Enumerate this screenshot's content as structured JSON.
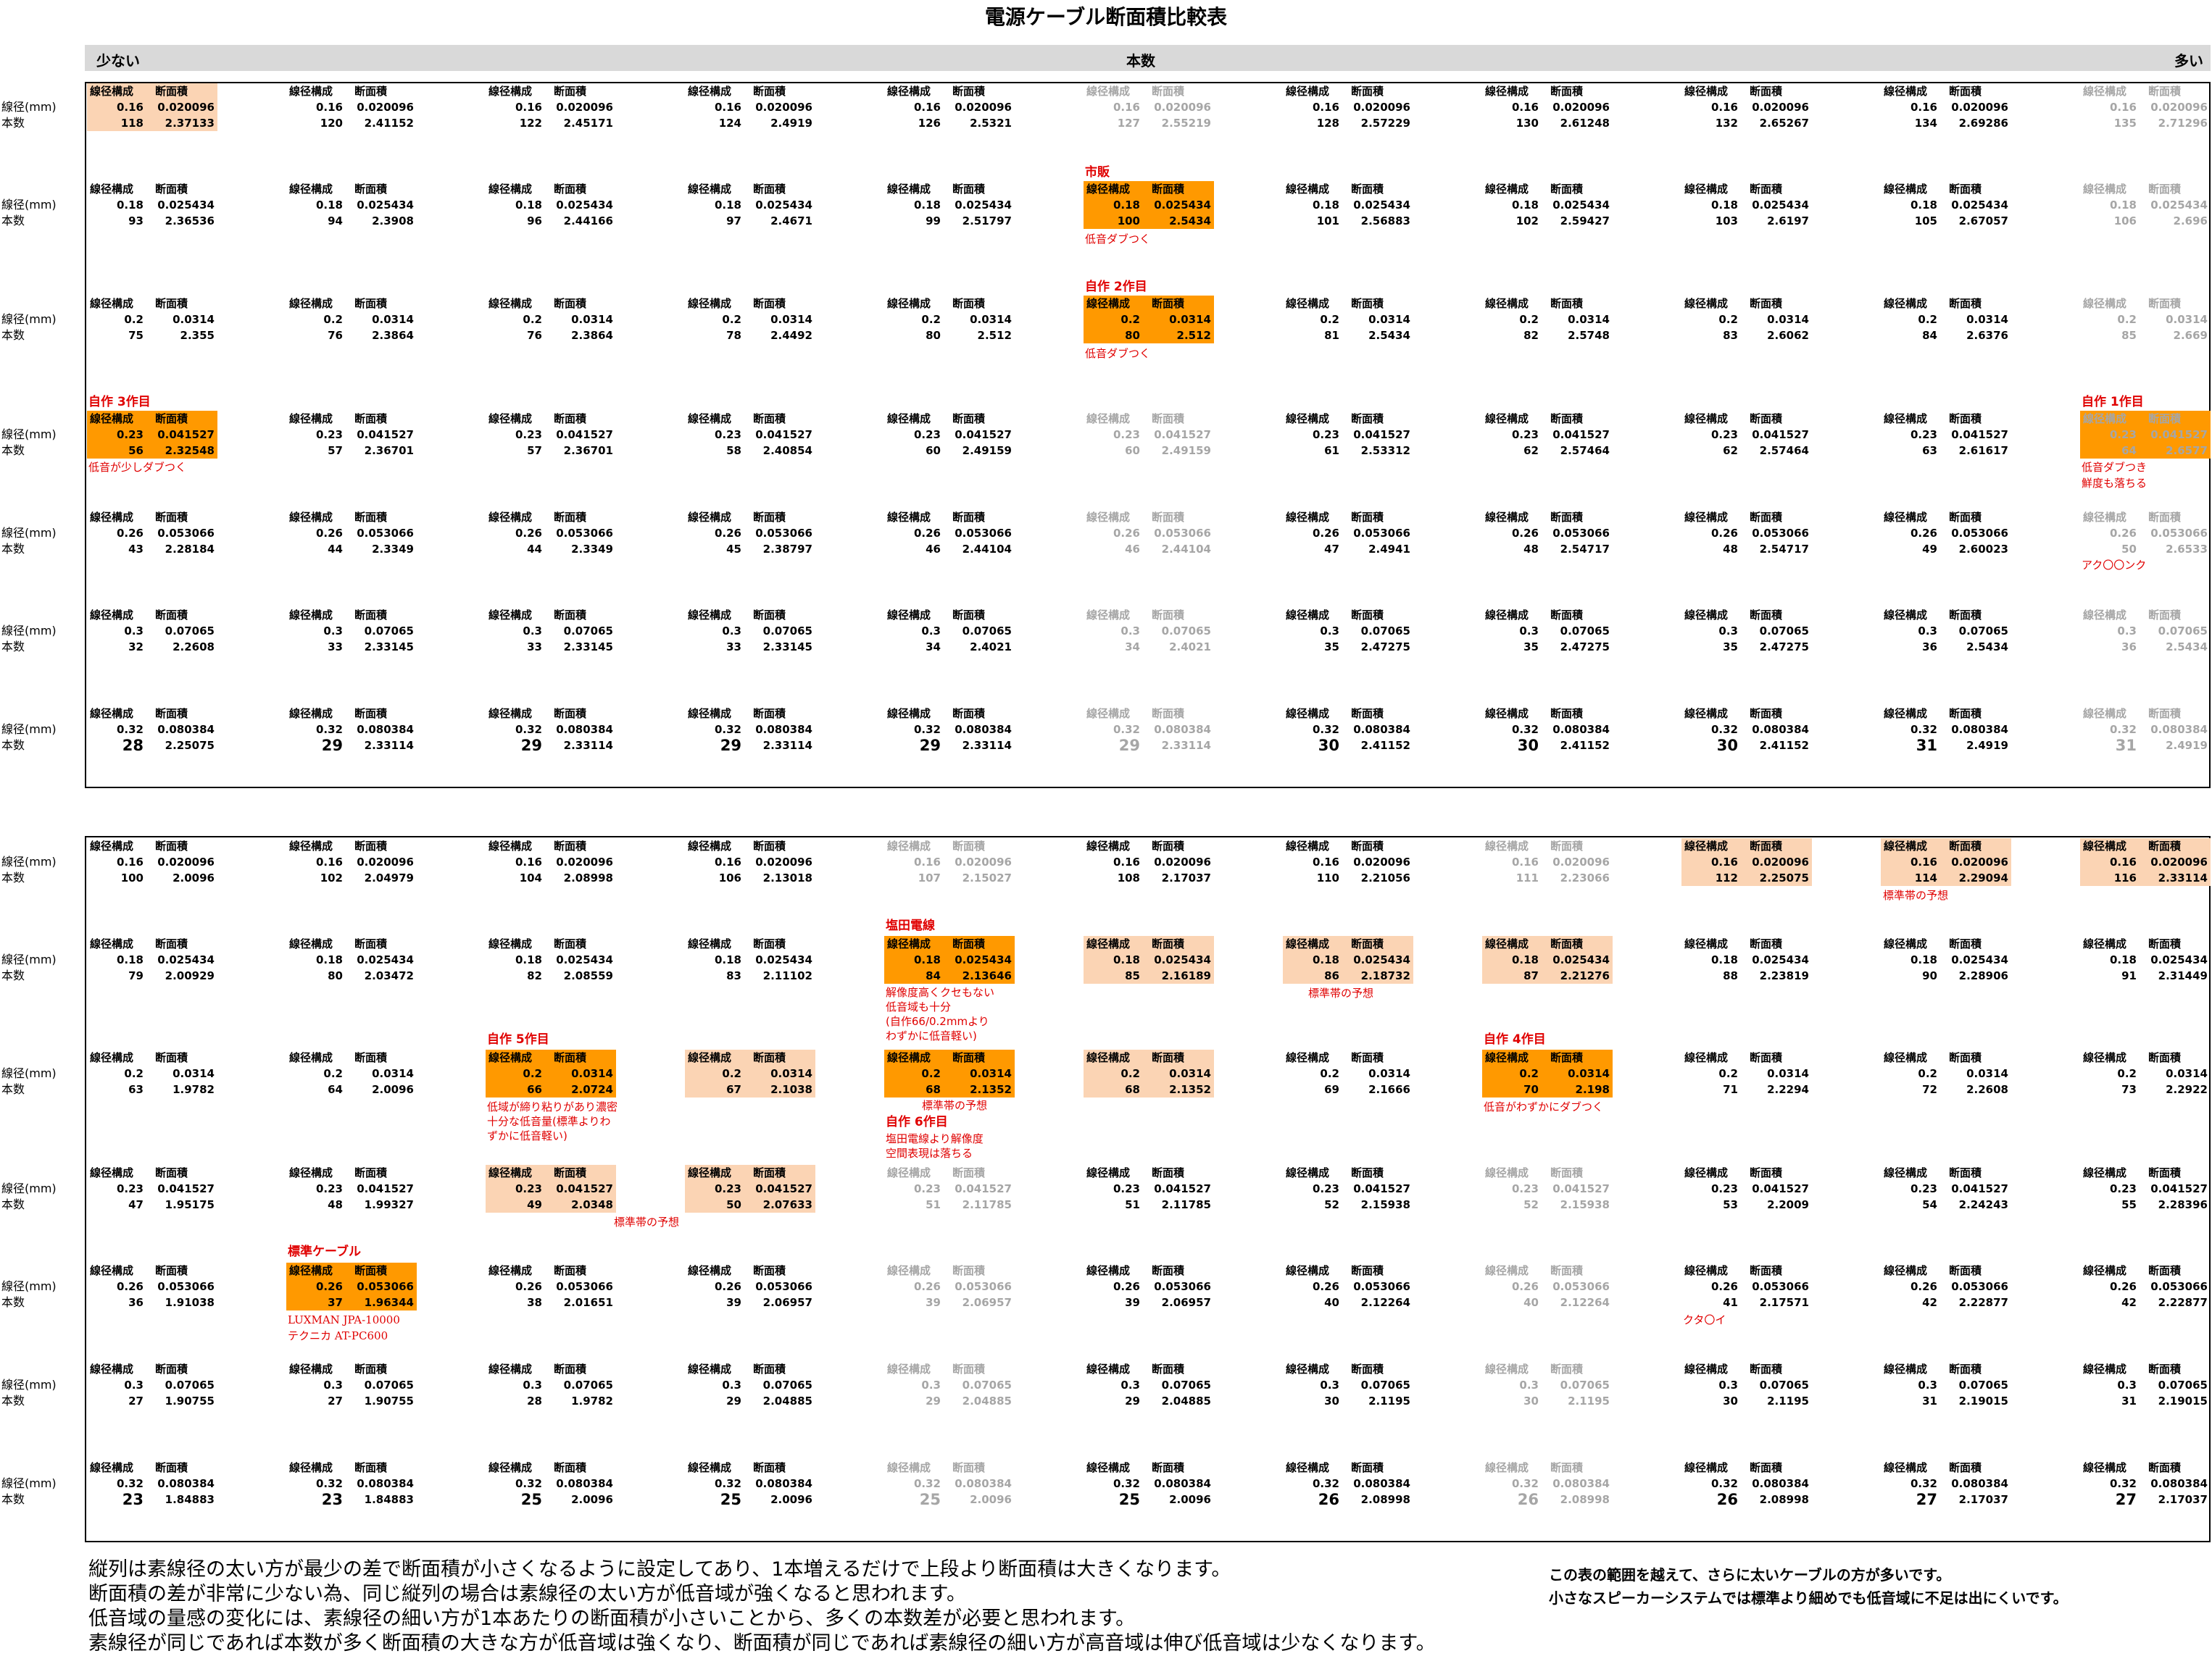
{
  "title": "電源ケーブル断面積比較表",
  "header": {
    "left": "少ない",
    "center": "本数",
    "right": "多い"
  },
  "row_label_1": "線径(mm)",
  "row_label_2": "本数",
  "col_labels": [
    "線径構成",
    "断面積"
  ],
  "colors": {
    "orange": "#ff9900",
    "light_orange": "#fbd4b4",
    "gray_text": "#a6a6a6",
    "red_text": "#e00000",
    "header_bg": "#d9d9d9"
  },
  "top": {
    "rows": [
      {
        "d": "0.16",
        "area": "0.020096",
        "cells": [
          [
            "118",
            "2.37133"
          ],
          [
            "120",
            "2.41152"
          ],
          [
            "122",
            "2.45171"
          ],
          [
            "124",
            "2.4919"
          ],
          [
            "126",
            "2.5321"
          ],
          [
            "127",
            "2.55219"
          ],
          [
            "128",
            "2.57229"
          ],
          [
            "130",
            "2.61248"
          ],
          [
            "132",
            "2.65267"
          ],
          [
            "134",
            "2.69286"
          ],
          [
            "135",
            "2.71296"
          ]
        ]
      },
      {
        "d": "0.18",
        "area": "0.025434",
        "cells": [
          [
            "93",
            "2.36536"
          ],
          [
            "94",
            "2.3908"
          ],
          [
            "96",
            "2.44166"
          ],
          [
            "97",
            "2.4671"
          ],
          [
            "99",
            "2.51797"
          ],
          [
            "100",
            "2.5434"
          ],
          [
            "101",
            "2.56883"
          ],
          [
            "102",
            "2.59427"
          ],
          [
            "103",
            "2.6197"
          ],
          [
            "105",
            "2.67057"
          ],
          [
            "106",
            "2.696"
          ]
        ]
      },
      {
        "d": "0.2",
        "area": "0.0314",
        "cells": [
          [
            "75",
            "2.355"
          ],
          [
            "76",
            "2.3864"
          ],
          [
            "76",
            "2.3864"
          ],
          [
            "78",
            "2.4492"
          ],
          [
            "80",
            "2.512"
          ],
          [
            "80",
            "2.512"
          ],
          [
            "81",
            "2.5434"
          ],
          [
            "82",
            "2.5748"
          ],
          [
            "83",
            "2.6062"
          ],
          [
            "84",
            "2.6376"
          ],
          [
            "85",
            "2.669"
          ]
        ]
      },
      {
        "d": "0.23",
        "area": "0.041527",
        "cells": [
          [
            "56",
            "2.32548"
          ],
          [
            "57",
            "2.36701"
          ],
          [
            "57",
            "2.36701"
          ],
          [
            "58",
            "2.40854"
          ],
          [
            "60",
            "2.49159"
          ],
          [
            "60",
            "2.49159"
          ],
          [
            "61",
            "2.53312"
          ],
          [
            "62",
            "2.57464"
          ],
          [
            "62",
            "2.57464"
          ],
          [
            "63",
            "2.61617"
          ],
          [
            "64",
            "2.6577"
          ]
        ]
      },
      {
        "d": "0.26",
        "area": "0.053066",
        "cells": [
          [
            "43",
            "2.28184"
          ],
          [
            "44",
            "2.3349"
          ],
          [
            "44",
            "2.3349"
          ],
          [
            "45",
            "2.38797"
          ],
          [
            "46",
            "2.44104"
          ],
          [
            "46",
            "2.44104"
          ],
          [
            "47",
            "2.4941"
          ],
          [
            "48",
            "2.54717"
          ],
          [
            "48",
            "2.54717"
          ],
          [
            "49",
            "2.60023"
          ],
          [
            "50",
            "2.6533"
          ]
        ]
      },
      {
        "d": "0.3",
        "area": "0.07065",
        "cells": [
          [
            "32",
            "2.2608"
          ],
          [
            "33",
            "2.33145"
          ],
          [
            "33",
            "2.33145"
          ],
          [
            "33",
            "2.33145"
          ],
          [
            "34",
            "2.4021"
          ],
          [
            "34",
            "2.4021"
          ],
          [
            "35",
            "2.47275"
          ],
          [
            "35",
            "2.47275"
          ],
          [
            "35",
            "2.47275"
          ],
          [
            "36",
            "2.5434"
          ],
          [
            "36",
            "2.5434"
          ]
        ]
      },
      {
        "d": "0.32",
        "area": "0.080384",
        "cells": [
          [
            "28",
            "2.25075"
          ],
          [
            "29",
            "2.33114"
          ],
          [
            "29",
            "2.33114"
          ],
          [
            "29",
            "2.33114"
          ],
          [
            "29",
            "2.33114"
          ],
          [
            "29",
            "2.33114"
          ],
          [
            "30",
            "2.41152"
          ],
          [
            "30",
            "2.41152"
          ],
          [
            "30",
            "2.41152"
          ],
          [
            "31",
            "2.4919"
          ],
          [
            "31",
            "2.4919"
          ]
        ]
      }
    ],
    "labels": {
      "shihan": "市販",
      "jisaku2": "自作 2作目",
      "jisaku3": "自作 3作目",
      "jisaku1": "自作 1作目"
    },
    "notes": {
      "teion1": "低音ダブつく",
      "teion2": "低音ダブつく",
      "teion3": "低音が少しダブつく",
      "n1a": "低音ダブつき",
      "n1b": "鮮度も落ちる",
      "aku": "アク〇〇ンク"
    }
  },
  "bottom": {
    "rows": [
      {
        "d": "0.16",
        "area": "0.020096",
        "cells": [
          [
            "100",
            "2.0096"
          ],
          [
            "102",
            "2.04979"
          ],
          [
            "104",
            "2.08998"
          ],
          [
            "106",
            "2.13018"
          ],
          [
            "107",
            "2.15027"
          ],
          [
            "108",
            "2.17037"
          ],
          [
            "110",
            "2.21056"
          ],
          [
            "111",
            "2.23066"
          ],
          [
            "112",
            "2.25075"
          ],
          [
            "114",
            "2.29094"
          ],
          [
            "116",
            "2.33114"
          ]
        ]
      },
      {
        "d": "0.18",
        "area": "0.025434",
        "cells": [
          [
            "79",
            "2.00929"
          ],
          [
            "80",
            "2.03472"
          ],
          [
            "82",
            "2.08559"
          ],
          [
            "83",
            "2.11102"
          ],
          [
            "84",
            "2.13646"
          ],
          [
            "85",
            "2.16189"
          ],
          [
            "86",
            "2.18732"
          ],
          [
            "87",
            "2.21276"
          ],
          [
            "88",
            "2.23819"
          ],
          [
            "90",
            "2.28906"
          ],
          [
            "91",
            "2.31449"
          ]
        ]
      },
      {
        "d": "0.2",
        "area": "0.0314",
        "cells": [
          [
            "63",
            "1.9782"
          ],
          [
            "64",
            "2.0096"
          ],
          [
            "66",
            "2.0724"
          ],
          [
            "67",
            "2.1038"
          ],
          [
            "68",
            "2.1352"
          ],
          [
            "68",
            "2.1352"
          ],
          [
            "69",
            "2.1666"
          ],
          [
            "70",
            "2.198"
          ],
          [
            "71",
            "2.2294"
          ],
          [
            "72",
            "2.2608"
          ],
          [
            "73",
            "2.2922"
          ]
        ]
      },
      {
        "d": "0.23",
        "area": "0.041527",
        "cells": [
          [
            "47",
            "1.95175"
          ],
          [
            "48",
            "1.99327"
          ],
          [
            "49",
            "2.0348"
          ],
          [
            "50",
            "2.07633"
          ],
          [
            "51",
            "2.11785"
          ],
          [
            "51",
            "2.11785"
          ],
          [
            "52",
            "2.15938"
          ],
          [
            "52",
            "2.15938"
          ],
          [
            "53",
            "2.2009"
          ],
          [
            "54",
            "2.24243"
          ],
          [
            "55",
            "2.28396"
          ]
        ]
      },
      {
        "d": "0.26",
        "area": "0.053066",
        "cells": [
          [
            "36",
            "1.91038"
          ],
          [
            "37",
            "1.96344"
          ],
          [
            "38",
            "2.01651"
          ],
          [
            "39",
            "2.06957"
          ],
          [
            "39",
            "2.06957"
          ],
          [
            "39",
            "2.06957"
          ],
          [
            "40",
            "2.12264"
          ],
          [
            "40",
            "2.12264"
          ],
          [
            "41",
            "2.17571"
          ],
          [
            "42",
            "2.22877"
          ],
          [
            "42",
            "2.22877"
          ]
        ]
      },
      {
        "d": "0.3",
        "area": "0.07065",
        "cells": [
          [
            "27",
            "1.90755"
          ],
          [
            "27",
            "1.90755"
          ],
          [
            "28",
            "1.9782"
          ],
          [
            "29",
            "2.04885"
          ],
          [
            "29",
            "2.04885"
          ],
          [
            "29",
            "2.04885"
          ],
          [
            "30",
            "2.1195"
          ],
          [
            "30",
            "2.1195"
          ],
          [
            "30",
            "2.1195"
          ],
          [
            "31",
            "2.19015"
          ],
          [
            "31",
            "2.19015"
          ]
        ]
      },
      {
        "d": "0.32",
        "area": "0.080384",
        "cells": [
          [
            "23",
            "1.84883"
          ],
          [
            "23",
            "1.84883"
          ],
          [
            "25",
            "2.0096"
          ],
          [
            "25",
            "2.0096"
          ],
          [
            "25",
            "2.0096"
          ],
          [
            "25",
            "2.0096"
          ],
          [
            "26",
            "2.08998"
          ],
          [
            "26",
            "2.08998"
          ],
          [
            "26",
            "2.08998"
          ],
          [
            "27",
            "2.17037"
          ],
          [
            "27",
            "2.17037"
          ]
        ]
      }
    ],
    "labels": {
      "shioda": "塩田電線",
      "jisaku5": "自作 5作目",
      "jisaku4": "自作 4作目",
      "jisaku6": "自作 6作目",
      "hyojun": "標準ケーブル"
    },
    "notes": {
      "h1": "標準帯の予想",
      "h2": "標準帯の予想",
      "h3": "標準帯の予想",
      "h4": "標準帯の予想",
      "s1": "解像度高くクセもない",
      "s2": "低音域も十分",
      "s3": "(自作66/0.2mmより",
      "s4": "わずかに低音軽い)",
      "f1": "低域が締り粘りがあり濃密",
      "f2": "十分な低音量(標準よりわ",
      "f3": "ずかに低音軽い)",
      "six1": "塩田電線より解像度",
      "six2": "空間表現は落ちる",
      "four1": "低音がわずかにダブつく",
      "lux1": "LUXMAN JPA-10000",
      "lux2": "テクニカ  AT-PC600",
      "kuta": "クタ〇イ"
    }
  },
  "footer": {
    "lines": [
      "縦列は素線径の太い方が最少の差で断面積が小さくなるように設定してあり、1本増えるだけで上段より断面積は大きくなります。",
      "断面積の差が非常に少ない為、同じ縦列の場合は素線径の太い方が低音域が強くなると思われます。",
      "低音域の量感の変化には、素線径の細い方が1本あたりの断面積が小さいことから、多くの本数差が必要と思われます。",
      "素線径が同じであれば本数が多く断面積の大きな方が低音域は強くなり、断面積が同じであれば素線径の細い方が高音域は伸び低音域は少なくなります。"
    ],
    "right": [
      "この表の範囲を越えて、さらに太いケーブルの方が多いです。",
      "小さなスピーカーシステムでは標準より細めでも低音域に不足は出にくいです。"
    ]
  }
}
